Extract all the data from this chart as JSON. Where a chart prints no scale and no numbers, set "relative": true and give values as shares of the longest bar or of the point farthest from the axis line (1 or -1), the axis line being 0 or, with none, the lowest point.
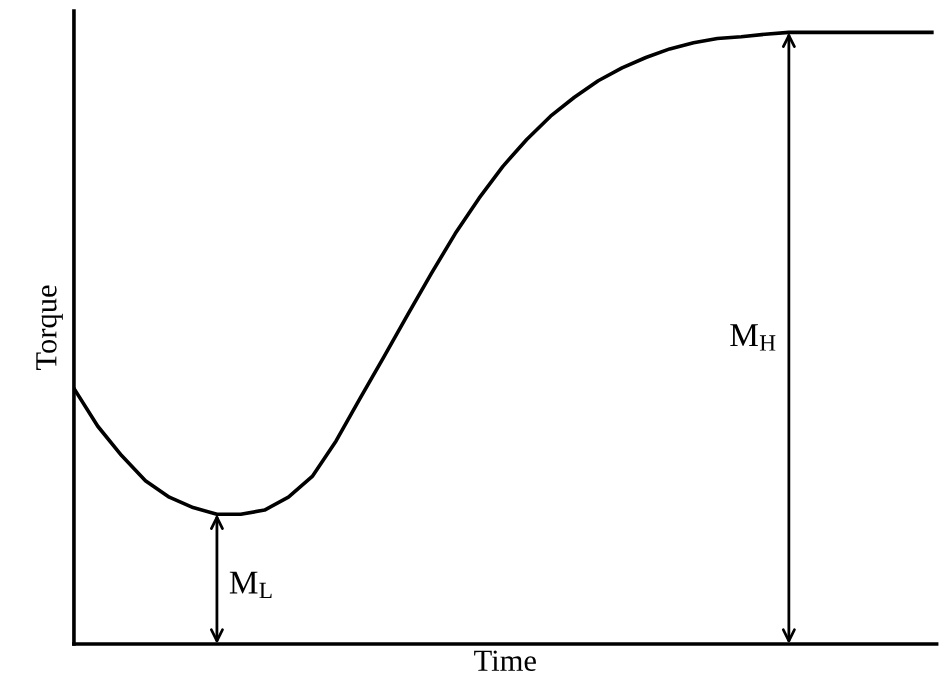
{
  "chart_data": {
    "type": "line",
    "relative": true,
    "xlabel": "Time",
    "ylabel": "Torque",
    "color": "#000000",
    "grid": false,
    "legend": false,
    "tick_labels": false,
    "marker": "none",
    "line_style": "solid",
    "categories": [
      null,
      null,
      null,
      null,
      null,
      null,
      null,
      null,
      null,
      null,
      null,
      null,
      null,
      null,
      null,
      null,
      null,
      null,
      null,
      null,
      null,
      null,
      null,
      null,
      null,
      null,
      null,
      null,
      null,
      null,
      null,
      null,
      null,
      null,
      null,
      null,
      null
    ],
    "values": [
      0.418,
      0.356,
      0.308,
      0.267,
      0.24,
      0.223,
      0.212,
      0.212,
      0.219,
      0.24,
      0.274,
      0.332,
      0.401,
      0.469,
      0.538,
      0.606,
      0.671,
      0.729,
      0.781,
      0.825,
      0.863,
      0.894,
      0.921,
      0.942,
      0.959,
      0.973,
      0.983,
      0.99,
      0.993,
      0.997,
      1,
      1,
      1,
      1,
      1,
      1,
      1
    ],
    "annotations": [
      "M$_{L}$",
      "M$_{H}$"
    ]
  }
}
